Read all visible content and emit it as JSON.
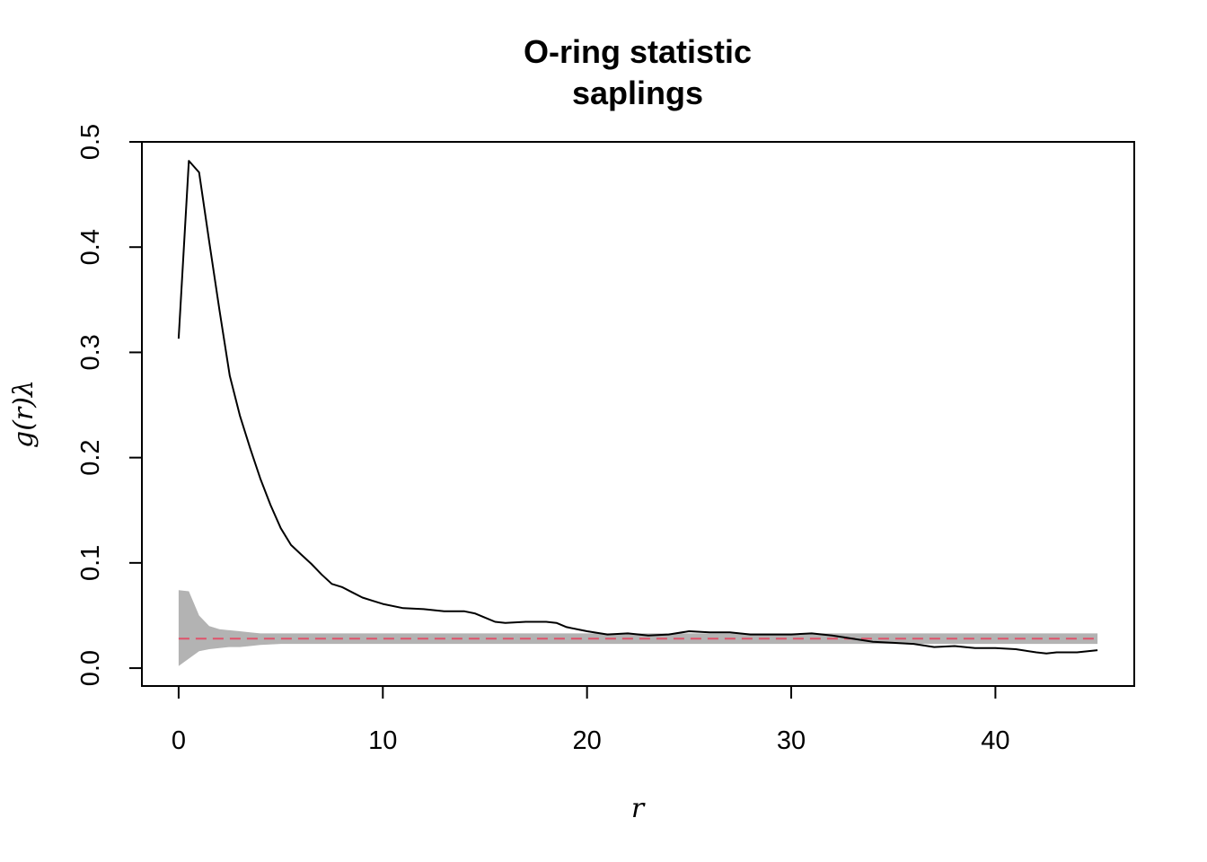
{
  "chart_data": {
    "type": "line",
    "title": "O-ring statistic",
    "subtitle": "saplings",
    "xlabel": "r",
    "ylabel": "g(r)λ",
    "xlim": [
      -1.8,
      46.8
    ],
    "ylim": [
      -0.017,
      0.5
    ],
    "xticks": [
      0,
      10,
      20,
      30,
      40
    ],
    "yticks": [
      0.0,
      0.1,
      0.2,
      0.3,
      0.4,
      0.5
    ],
    "xtick_labels": [
      "0",
      "10",
      "20",
      "30",
      "40"
    ],
    "ytick_labels": [
      "0.0",
      "0.1",
      "0.2",
      "0.3",
      "0.4",
      "0.5"
    ],
    "grid": false,
    "legend": "none",
    "colors": {
      "observed": "#000000",
      "envelope": "#b3b3b3",
      "theoretical": "#df536b"
    },
    "series": [
      {
        "name": "",
        "role": "observed",
        "x": [
          0,
          0.5,
          1,
          1.5,
          2,
          2.5,
          3,
          3.5,
          4,
          4.5,
          5,
          5.5,
          6,
          6.5,
          7,
          7.5,
          8,
          8.5,
          9,
          9.5,
          10,
          11,
          12,
          13,
          14,
          14.5,
          15,
          15.5,
          16,
          17,
          18,
          18.5,
          19,
          20,
          21,
          22,
          23,
          24,
          25,
          26,
          27,
          28,
          29,
          30,
          31,
          32,
          33,
          34,
          35,
          36,
          37,
          38,
          39,
          40,
          41,
          42,
          42.5,
          43,
          44,
          45
        ],
        "y": [
          0.313,
          0.482,
          0.471,
          0.405,
          0.34,
          0.278,
          0.24,
          0.209,
          0.18,
          0.155,
          0.133,
          0.117,
          0.108,
          0.099,
          0.089,
          0.08,
          0.077,
          0.072,
          0.067,
          0.064,
          0.061,
          0.057,
          0.056,
          0.054,
          0.054,
          0.052,
          0.048,
          0.044,
          0.043,
          0.044,
          0.044,
          0.043,
          0.039,
          0.035,
          0.032,
          0.033,
          0.031,
          0.032,
          0.035,
          0.034,
          0.034,
          0.032,
          0.032,
          0.032,
          0.033,
          0.031,
          0.028,
          0.025,
          0.024,
          0.023,
          0.02,
          0.021,
          0.019,
          0.019,
          0.018,
          0.015,
          0.014,
          0.015,
          0.015,
          0.017
        ]
      },
      {
        "name": "",
        "role": "theoretical",
        "x": [
          0,
          45
        ],
        "y": [
          0.028,
          0.028
        ]
      }
    ],
    "envelope": {
      "x": [
        0,
        0.5,
        1,
        1.5,
        2,
        2.5,
        3,
        3.5,
        4,
        5,
        6,
        8,
        10,
        12,
        14,
        16,
        18,
        20,
        22,
        24,
        26,
        28,
        30,
        32,
        34,
        36,
        38,
        40,
        42,
        44,
        45
      ],
      "lower": [
        0.002,
        0.009,
        0.016,
        0.018,
        0.019,
        0.02,
        0.02,
        0.021,
        0.022,
        0.023,
        0.023,
        0.023,
        0.023,
        0.023,
        0.023,
        0.023,
        0.023,
        0.023,
        0.023,
        0.023,
        0.023,
        0.023,
        0.023,
        0.023,
        0.023,
        0.023,
        0.023,
        0.023,
        0.023,
        0.023,
        0.023
      ],
      "upper": [
        0.074,
        0.073,
        0.05,
        0.04,
        0.037,
        0.036,
        0.035,
        0.034,
        0.033,
        0.033,
        0.033,
        0.033,
        0.033,
        0.033,
        0.033,
        0.033,
        0.033,
        0.033,
        0.033,
        0.033,
        0.033,
        0.033,
        0.033,
        0.033,
        0.033,
        0.033,
        0.033,
        0.033,
        0.033,
        0.033,
        0.033
      ]
    }
  }
}
